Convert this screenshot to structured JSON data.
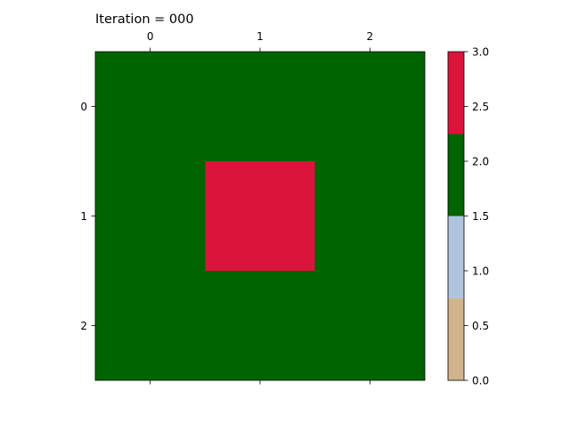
{
  "chart_data": {
    "type": "heatmap",
    "title": "Iteration = 000",
    "grid": [
      [
        2,
        2,
        2
      ],
      [
        2,
        3,
        2
      ],
      [
        2,
        2,
        2
      ]
    ],
    "x_ticks": [
      "0",
      "1",
      "2"
    ],
    "y_ticks": [
      "0",
      "1",
      "2"
    ],
    "x_range": [
      -0.5,
      2.5
    ],
    "y_range": [
      -0.5,
      2.5
    ],
    "x_axis_position": "top",
    "y_axis_inverted": true,
    "colormap": {
      "type": "discrete",
      "range": [
        0,
        3
      ],
      "colors": [
        "#D2B48C",
        "#B0C4DE",
        "#006400",
        "#DC143C"
      ]
    },
    "colorbar": {
      "ticks": [
        "0.0",
        "0.5",
        "1.0",
        "1.5",
        "2.0",
        "2.5",
        "3.0"
      ],
      "tick_values": [
        0.0,
        0.5,
        1.0,
        1.5,
        2.0,
        2.5,
        3.0
      ]
    },
    "xlabel": "",
    "ylabel": ""
  }
}
